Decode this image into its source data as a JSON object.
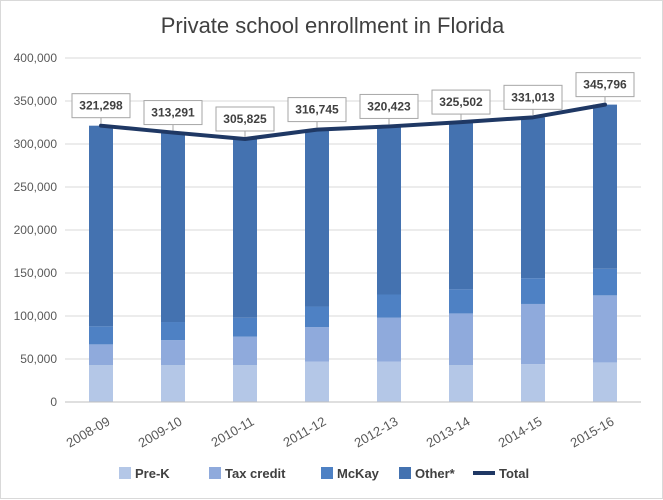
{
  "chart_data": {
    "type": "bar",
    "title": "Private school enrollment in Florida",
    "xlabel": "",
    "ylabel": "",
    "ylim": [
      0,
      400000
    ],
    "yticks": [
      0,
      50000,
      100000,
      150000,
      200000,
      250000,
      300000,
      350000,
      400000
    ],
    "ytick_labels": [
      "0",
      "50,000",
      "100,000",
      "150,000",
      "200,000",
      "250,000",
      "300,000",
      "350,000",
      "400,000"
    ],
    "stacked": true,
    "grid": true,
    "legend_position": "bottom",
    "categories": [
      "2008-09",
      "2009-10",
      "2010-11",
      "2011-12",
      "2012-13",
      "2013-14",
      "2014-15",
      "2015-16"
    ],
    "series": [
      {
        "name": "Pre-K",
        "type": "bar",
        "color": "#b4c7e7",
        "values": [
          43000,
          43000,
          43000,
          47000,
          47000,
          43000,
          44000,
          46000
        ]
      },
      {
        "name": "Tax credit",
        "type": "bar",
        "color": "#8faadc",
        "values": [
          24000,
          29000,
          33000,
          40000,
          51000,
          60000,
          70000,
          78000
        ]
      },
      {
        "name": "McKay",
        "type": "bar",
        "color": "#4e81c4",
        "values": [
          21000,
          21000,
          22000,
          24000,
          27000,
          28000,
          30000,
          31000
        ]
      },
      {
        "name": "Other*",
        "type": "bar",
        "color": "#4472b0",
        "values": [
          233298,
          220291,
          207825,
          205745,
          195423,
          194502,
          187013,
          190796
        ]
      },
      {
        "name": "Total",
        "type": "line",
        "color": "#1f3864",
        "values": [
          321298,
          313291,
          305825,
          316745,
          320423,
          325502,
          331013,
          345796
        ],
        "labels": [
          "321,298",
          "313,291",
          "305,825",
          "316,745",
          "320,423",
          "325,502",
          "331,013",
          "345,796"
        ]
      }
    ]
  }
}
